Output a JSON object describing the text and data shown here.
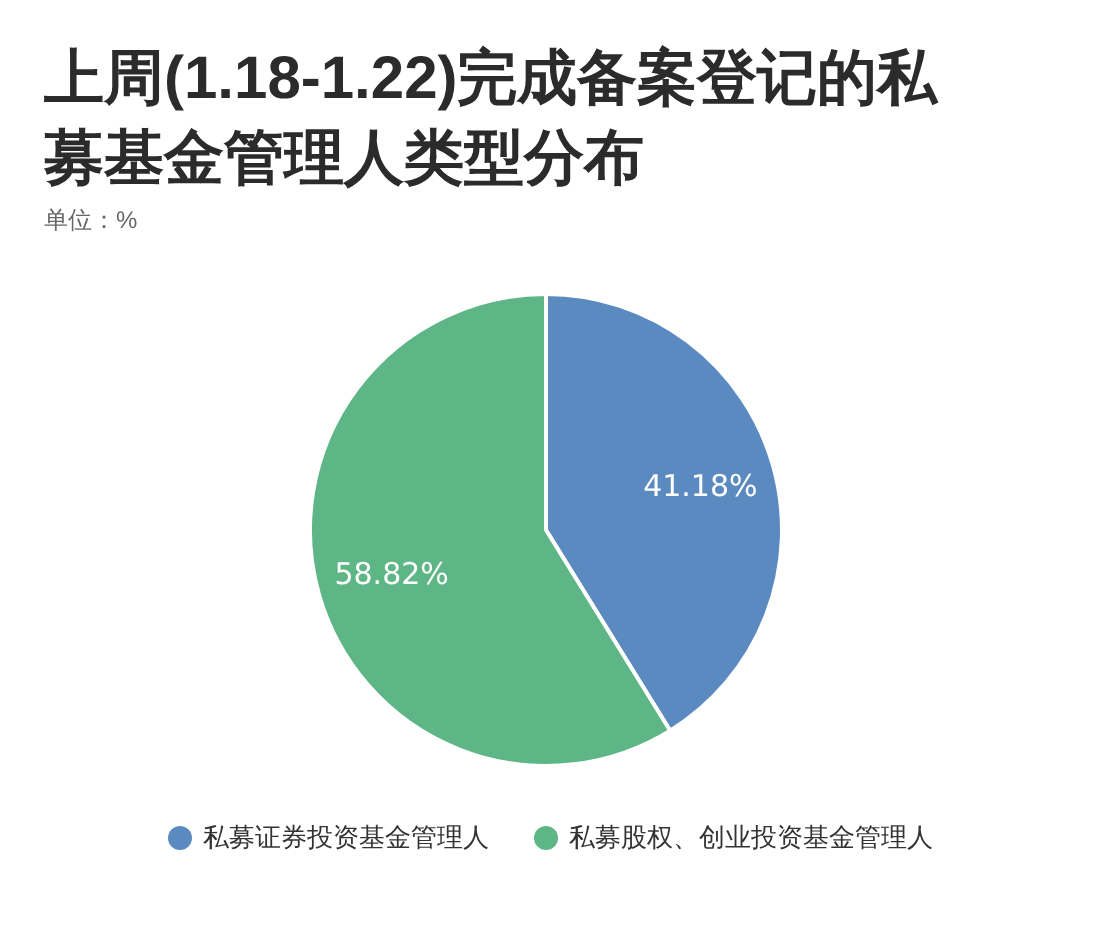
{
  "chart_data": {
    "type": "pie",
    "title": "上周(1.18-1.22)完成备案登记的私募基金管理人类型分布",
    "subtitle": "单位：%",
    "categories": [
      "私募证券投资基金管理人",
      "私募股权、创业投资基金管理人"
    ],
    "values": [
      41.18,
      58.82
    ],
    "colors": [
      "#5b8ac0",
      "#5eb585"
    ],
    "value_labels": [
      "41.18%",
      "58.82%"
    ],
    "legend": "bottom"
  }
}
